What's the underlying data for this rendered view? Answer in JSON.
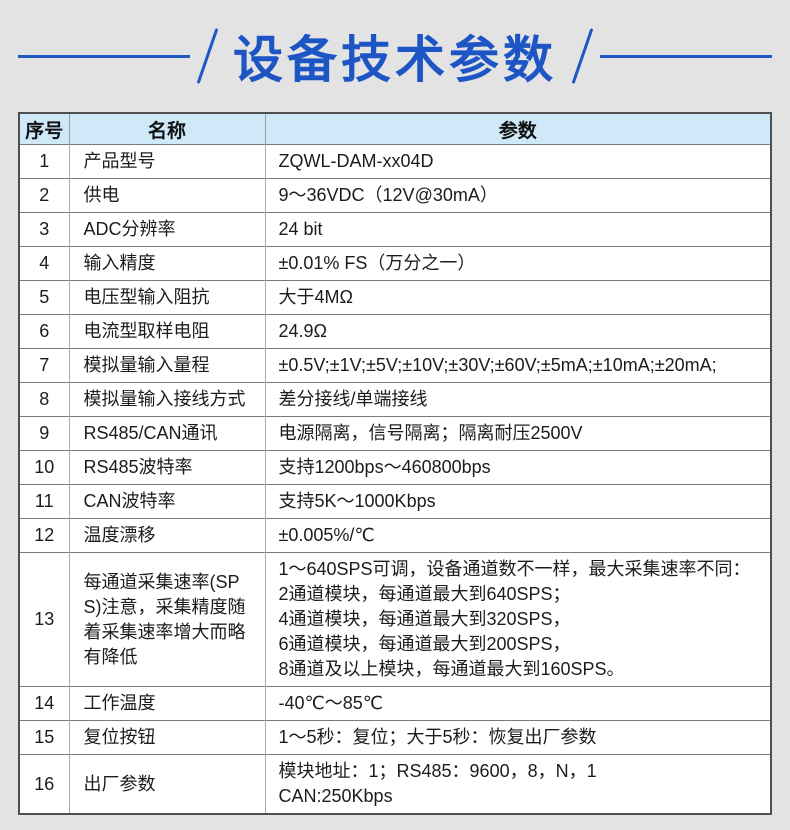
{
  "page": {
    "background_color": "#e3e3e3",
    "accent_blue": "#1d56c4",
    "table_header_bg": "#cfe9f9"
  },
  "header": {
    "title": "设备技术参数"
  },
  "table": {
    "columns": [
      "序号",
      "名称",
      "参数"
    ],
    "rows": [
      {
        "no": "1",
        "name": "产品型号",
        "params": [
          "ZQWL-DAM-xx04D"
        ]
      },
      {
        "no": "2",
        "name": "供电",
        "params": [
          "9～36VDC（12V@30mA）"
        ]
      },
      {
        "no": "3",
        "name": "ADC分辨率",
        "params": [
          "24 bit"
        ]
      },
      {
        "no": "4",
        "name": "输入精度",
        "params": [
          "±0.01% FS（万分之一）"
        ]
      },
      {
        "no": "5",
        "name": "电压型输入阻抗",
        "params": [
          "大于4MΩ"
        ]
      },
      {
        "no": "6",
        "name": "电流型取样电阻",
        "params": [
          "24.9Ω"
        ]
      },
      {
        "no": "7",
        "name": "模拟量输入量程",
        "params": [
          "±0.5V;±1V;±5V;±10V;±30V;±60V;±5mA;±10mA;±20mA;"
        ]
      },
      {
        "no": "8",
        "name": "模拟量输入接线方式",
        "params": [
          "差分接线/单端接线"
        ]
      },
      {
        "no": "9",
        "name": "RS485/CAN通讯",
        "params": [
          "电源隔离，信号隔离；隔离耐压2500V"
        ]
      },
      {
        "no": "10",
        "name": "RS485波特率",
        "params": [
          "支持1200bps～460800bps"
        ]
      },
      {
        "no": "11",
        "name": "CAN波特率",
        "params": [
          "支持5K～1000Kbps"
        ]
      },
      {
        "no": "12",
        "name": "温度漂移",
        "params": [
          "±0.005%/℃"
        ]
      },
      {
        "no": "13",
        "name": "每通道采集速率(SPS)注意，采集精度随着采集速率增大而略有降低",
        "params": [
          "1～640SPS可调，设备通道数不一样，最大采集速率不同：",
          "2通道模块，每通道最大到640SPS；",
          "4通道模块，每通道最大到320SPS，",
          "6通道模块，每通道最大到200SPS，",
          "8通道及以上模块，每通道最大到160SPS。"
        ]
      },
      {
        "no": "14",
        "name": "工作温度",
        "params": [
          "-40℃～85℃"
        ]
      },
      {
        "no": "15",
        "name": "复位按钮",
        "params": [
          "1～5秒：复位；大于5秒：恢复出厂参数"
        ]
      },
      {
        "no": "16",
        "name": "出厂参数",
        "params": [
          "模块地址：1；RS485：9600，8，N，1",
          "CAN:250Kbps"
        ]
      }
    ]
  }
}
